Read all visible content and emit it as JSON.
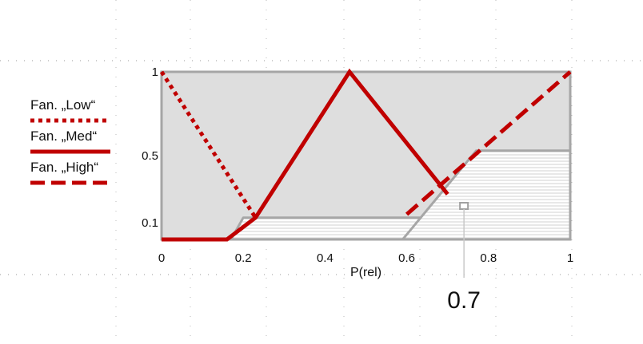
{
  "chart_data": {
    "type": "line",
    "xlabel": "P(rel)",
    "ylabel": "",
    "xlim": [
      0,
      1
    ],
    "ylim": [
      0,
      1
    ],
    "x_ticks": [
      "0",
      "0.2",
      "0.4",
      "0.6",
      "0.8",
      "1"
    ],
    "y_ticks": [
      "1",
      "0.5",
      "0.1"
    ],
    "grid": false,
    "legend_position": "left",
    "series": [
      {
        "name": "Fan. „Low“",
        "style": "dotted",
        "color": "#c00000",
        "x": [
          0,
          0.23
        ],
        "y": [
          1,
          0.13
        ]
      },
      {
        "name": "Fan. „Med“",
        "style": "solid",
        "color": "#c00000",
        "x": [
          0,
          0.16,
          0.23,
          0.46,
          0.7
        ],
        "y": [
          0,
          0,
          0.13,
          1,
          0.27
        ]
      },
      {
        "name": "Fan. „High“",
        "style": "dashed",
        "color": "#c00000",
        "x": [
          0.6,
          1
        ],
        "y": [
          0.15,
          1
        ]
      }
    ],
    "regions": [
      {
        "name": "clipped-low-med",
        "points": [
          [
            0.17,
            0
          ],
          [
            0.2,
            0.13
          ],
          [
            0.65,
            0.13
          ],
          [
            0.59,
            0
          ]
        ]
      },
      {
        "name": "clipped-high",
        "points": [
          [
            0.59,
            0
          ],
          [
            0.77,
            0.53
          ],
          [
            1,
            0.53
          ],
          [
            1,
            0
          ]
        ]
      }
    ],
    "annotation": {
      "text": "0.7",
      "x": 0.74
    }
  },
  "colors": {
    "series": "#c00000",
    "frame": "#a6a6a6",
    "plot_fill": "#dedede",
    "region_fill": "#ffffff",
    "hatch": "#cfcfcf"
  }
}
